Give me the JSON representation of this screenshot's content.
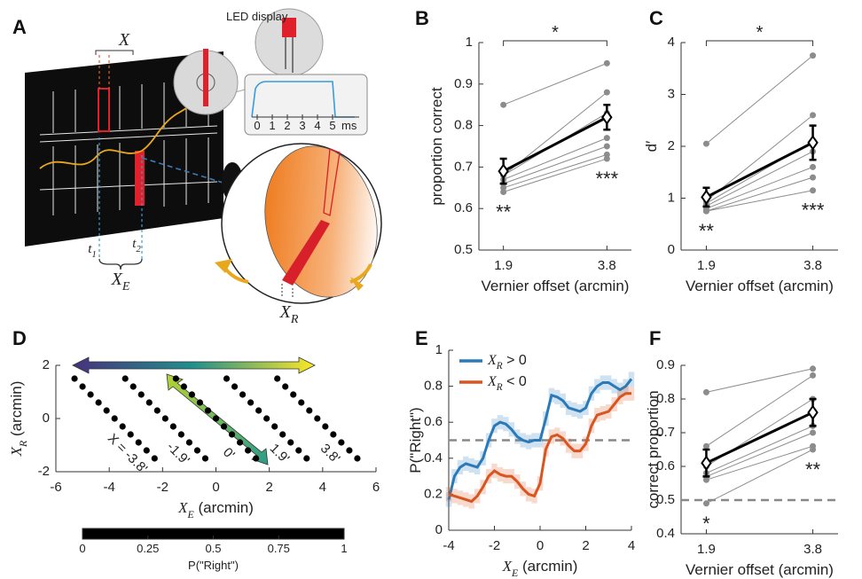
{
  "diagram": {
    "label": "A",
    "led_label": "LED display",
    "offset_label": "X",
    "times": [
      "t_1",
      "t_2"
    ],
    "screen_offset_label": "X_E",
    "retinal_offset_label": "X_R",
    "inset": {
      "ticks": [
        0,
        1,
        2,
        3,
        4,
        5
      ],
      "unit": "ms"
    }
  },
  "chart_data": [
    {
      "type": "line",
      "panel": "B",
      "ylabel": "proportion correct",
      "xlabel": "Vernier offset (arcmin)",
      "x": [
        1.9,
        3.8
      ],
      "xlim": [
        1.45,
        4.25
      ],
      "xticks": [
        1.9,
        3.8
      ],
      "ylim": [
        0.5,
        1
      ],
      "yticks": [
        0.5,
        0.6,
        0.7,
        0.8,
        0.9,
        1
      ],
      "series": [
        {
          "color": "#8c8c8c",
          "values": [
            0.85,
            0.95
          ]
        },
        {
          "color": "#8c8c8c",
          "values": [
            0.68,
            0.88
          ]
        },
        {
          "color": "#8c8c8c",
          "values": [
            0.68,
            0.83
          ]
        },
        {
          "color": "#8c8c8c",
          "values": [
            0.67,
            0.77
          ]
        },
        {
          "color": "#8c8c8c",
          "values": [
            0.66,
            0.75
          ]
        },
        {
          "color": "#8c8c8c",
          "values": [
            0.65,
            0.73
          ]
        },
        {
          "color": "#8c8c8c",
          "values": [
            0.64,
            0.72
          ]
        },
        {
          "color": "#000000",
          "values": [
            0.69,
            0.82
          ],
          "errors": [
            0.03,
            0.03
          ]
        }
      ],
      "significance": {
        "between": "*",
        "at": [
          "**",
          "***"
        ]
      }
    },
    {
      "type": "line",
      "panel": "C",
      "ylabel": "d′",
      "xlabel": "Vernier offset (arcmin)",
      "x": [
        1.9,
        3.8
      ],
      "xlim": [
        1.45,
        4.25
      ],
      "xticks": [
        1.9,
        3.8
      ],
      "ylim": [
        0,
        4
      ],
      "yticks": [
        0,
        1,
        2,
        3,
        4
      ],
      "series": [
        {
          "color": "#8c8c8c",
          "values": [
            2.05,
            3.75
          ]
        },
        {
          "color": "#8c8c8c",
          "values": [
            0.95,
            2.6
          ]
        },
        {
          "color": "#8c8c8c",
          "values": [
            0.9,
            2.1
          ]
        },
        {
          "color": "#8c8c8c",
          "values": [
            0.85,
            1.9
          ]
        },
        {
          "color": "#8c8c8c",
          "values": [
            0.8,
            1.6
          ]
        },
        {
          "color": "#8c8c8c",
          "values": [
            0.75,
            1.4
          ]
        },
        {
          "color": "#8c8c8c",
          "values": [
            0.75,
            1.15
          ]
        },
        {
          "color": "#000000",
          "values": [
            1.02,
            2.07
          ],
          "errors": [
            0.18,
            0.33
          ]
        }
      ],
      "significance": {
        "between": "*",
        "at": [
          "**",
          "***"
        ]
      }
    },
    {
      "type": "scatter",
      "panel": "D",
      "ylabel": "X_R (arcmin)",
      "xlabel": "X_E (arcmin)",
      "xlim": [
        -6,
        6
      ],
      "xticks": [
        -6,
        -4,
        -2,
        0,
        2,
        4,
        6
      ],
      "ylim": [
        -2,
        2
      ],
      "yticks": [
        -2,
        0,
        2
      ],
      "colormap": "viridis",
      "clim": [
        0,
        1
      ],
      "colorbar_ticks": [
        0,
        0.25,
        0.5,
        0.75,
        1
      ],
      "colorbar_label": "P(\"Right\")",
      "line_labels": [
        "X = -3.8'",
        "-1.9'",
        "0'",
        "1.9'",
        "3.8'"
      ],
      "series": [
        {
          "x": [
            -5.3,
            -5.0,
            -4.7,
            -4.4,
            -4.1,
            -3.8,
            -3.5,
            -3.2,
            -2.9,
            -2.6,
            -2.3
          ],
          "y": [
            1.5,
            1.2,
            0.9,
            0.6,
            0.3,
            0,
            -0.3,
            -0.6,
            -0.9,
            -1.2,
            -1.5
          ],
          "values": [
            0.12,
            0.12,
            0.11,
            0.1,
            0.1,
            0.09,
            0.09,
            0.08,
            0.08,
            0.08,
            0.07
          ]
        },
        {
          "x": [
            -3.4,
            -3.1,
            -2.8,
            -2.5,
            -2.2,
            -1.9,
            -1.6,
            -1.3,
            -1.0,
            -0.7,
            -0.4
          ],
          "y": [
            1.5,
            1.2,
            0.9,
            0.6,
            0.3,
            0,
            -0.3,
            -0.6,
            -0.9,
            -1.2,
            -1.5
          ],
          "values": [
            0.4,
            0.38,
            0.35,
            0.32,
            0.3,
            0.27,
            0.24,
            0.2,
            0.17,
            0.14,
            0.12
          ]
        },
        {
          "x": [
            -1.5,
            -1.2,
            -0.9,
            -0.6,
            -0.3,
            0,
            0.3,
            0.6,
            0.9,
            1.2,
            1.5
          ],
          "y": [
            1.5,
            1.2,
            0.9,
            0.6,
            0.3,
            0,
            -0.3,
            -0.6,
            -0.9,
            -1.2,
            -1.5
          ],
          "values": [
            0.7,
            0.66,
            0.62,
            0.58,
            0.54,
            0.5,
            0.46,
            0.42,
            0.38,
            0.34,
            0.3
          ]
        },
        {
          "x": [
            0.4,
            0.7,
            1.0,
            1.3,
            1.6,
            1.9,
            2.2,
            2.5,
            2.8,
            3.1,
            3.4
          ],
          "y": [
            1.5,
            1.2,
            0.9,
            0.6,
            0.3,
            0,
            -0.3,
            -0.6,
            -0.9,
            -1.2,
            -1.5
          ],
          "values": [
            0.88,
            0.86,
            0.84,
            0.82,
            0.8,
            0.78,
            0.75,
            0.72,
            0.7,
            0.67,
            0.64
          ]
        },
        {
          "x": [
            2.3,
            2.6,
            2.9,
            3.2,
            3.5,
            3.8,
            4.1,
            4.4,
            4.7,
            5.0,
            5.3
          ],
          "y": [
            1.5,
            1.2,
            0.9,
            0.6,
            0.3,
            0,
            -0.3,
            -0.6,
            -0.9,
            -1.2,
            -1.5
          ],
          "values": [
            0.93,
            0.92,
            0.91,
            0.9,
            0.89,
            0.88,
            0.87,
            0.86,
            0.85,
            0.84,
            0.82
          ]
        }
      ]
    },
    {
      "type": "line",
      "panel": "E",
      "ylabel": "P(\"Right\")",
      "xlabel": "X_E (arcmin)",
      "legend": "upper left",
      "hline": 0.5,
      "x": [
        -4,
        -3.75,
        -3.5,
        -3.25,
        -3,
        -2.75,
        -2.5,
        -2.25,
        -2,
        -1.75,
        -1.5,
        -1.25,
        -1,
        -0.75,
        -0.5,
        -0.25,
        0,
        0.25,
        0.5,
        0.75,
        1,
        1.25,
        1.5,
        1.75,
        2,
        2.25,
        2.5,
        2.75,
        3,
        3.25,
        3.5,
        3.75,
        4
      ],
      "xlim": [
        -4,
        4
      ],
      "xticks": [
        -4,
        -2,
        0,
        2,
        4
      ],
      "ylim": [
        0,
        1
      ],
      "yticks": [
        0,
        0.2,
        0.4,
        0.6,
        0.8,
        1
      ],
      "series": [
        {
          "name": "X_R > 0",
          "color": "#2a7ab9",
          "values": [
            0.17,
            0.3,
            0.35,
            0.37,
            0.36,
            0.35,
            0.4,
            0.5,
            0.58,
            0.6,
            0.59,
            0.56,
            0.52,
            0.5,
            0.49,
            0.5,
            0.5,
            0.62,
            0.75,
            0.74,
            0.72,
            0.68,
            0.67,
            0.66,
            0.68,
            0.76,
            0.8,
            0.82,
            0.82,
            0.8,
            0.78,
            0.8,
            0.84
          ],
          "errors": [
            0.04,
            0.04,
            0.04,
            0.04,
            0.04,
            0.04,
            0.04,
            0.04,
            0.04,
            0.04,
            0.04,
            0.04,
            0.04,
            0.04,
            0.04,
            0.04,
            0.04,
            0.04,
            0.04,
            0.04,
            0.04,
            0.04,
            0.04,
            0.04,
            0.04,
            0.04,
            0.04,
            0.04,
            0.04,
            0.04,
            0.04,
            0.04,
            0.04
          ]
        },
        {
          "name": "X_R < 0",
          "color": "#d9541e",
          "values": [
            0.2,
            0.19,
            0.18,
            0.17,
            0.16,
            0.19,
            0.24,
            0.3,
            0.33,
            0.31,
            0.3,
            0.3,
            0.27,
            0.23,
            0.2,
            0.19,
            0.26,
            0.45,
            0.52,
            0.53,
            0.51,
            0.47,
            0.44,
            0.44,
            0.48,
            0.58,
            0.64,
            0.65,
            0.66,
            0.7,
            0.74,
            0.76,
            0.76
          ],
          "errors": [
            0.04,
            0.04,
            0.04,
            0.04,
            0.04,
            0.04,
            0.04,
            0.04,
            0.04,
            0.04,
            0.04,
            0.04,
            0.04,
            0.04,
            0.04,
            0.04,
            0.04,
            0.04,
            0.04,
            0.04,
            0.04,
            0.04,
            0.04,
            0.04,
            0.04,
            0.04,
            0.04,
            0.04,
            0.04,
            0.04,
            0.04,
            0.04,
            0.04
          ]
        }
      ]
    },
    {
      "type": "line",
      "panel": "F",
      "ylabel": "correct proportion",
      "xlabel": "Vernier offset (arcmin)",
      "hline": 0.5,
      "x": [
        1.9,
        3.8
      ],
      "xlim": [
        1.45,
        4.25
      ],
      "xticks": [
        1.9,
        3.8
      ],
      "ylim": [
        0.4,
        0.9
      ],
      "yticks": [
        0.4,
        0.5,
        0.6,
        0.7,
        0.8,
        0.9
      ],
      "series": [
        {
          "color": "#8c8c8c",
          "values": [
            0.82,
            0.89
          ]
        },
        {
          "color": "#8c8c8c",
          "values": [
            0.66,
            0.87
          ]
        },
        {
          "color": "#8c8c8c",
          "values": [
            0.6,
            0.8
          ]
        },
        {
          "color": "#8c8c8c",
          "values": [
            0.58,
            0.72
          ]
        },
        {
          "color": "#8c8c8c",
          "values": [
            0.57,
            0.7
          ]
        },
        {
          "color": "#8c8c8c",
          "values": [
            0.56,
            0.66
          ]
        },
        {
          "color": "#8c8c8c",
          "values": [
            0.49,
            0.65
          ]
        },
        {
          "color": "#000000",
          "values": [
            0.61,
            0.76
          ],
          "errors": [
            0.04,
            0.04
          ]
        }
      ],
      "significance": {
        "at": [
          "*",
          "**"
        ]
      }
    }
  ]
}
